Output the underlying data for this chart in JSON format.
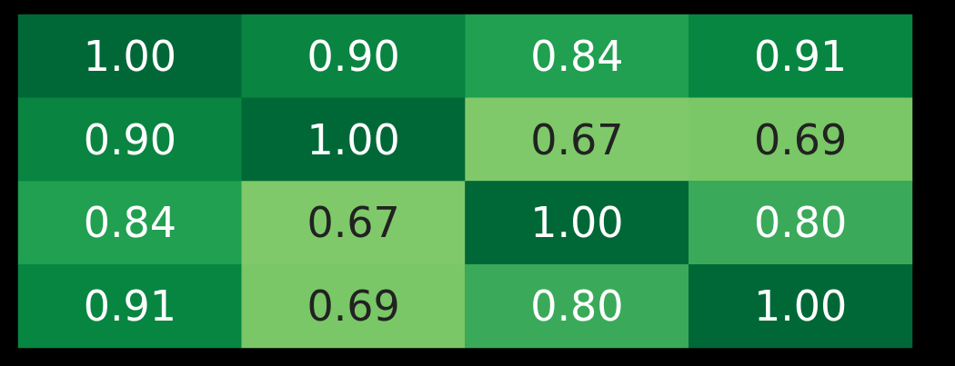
{
  "chart_data": {
    "type": "heatmap",
    "categories": [
      null,
      null,
      null,
      null
    ],
    "y_categories": [
      null,
      null,
      null,
      null
    ],
    "cells": [
      [
        1.0,
        0.9,
        0.84,
        0.91
      ],
      [
        0.9,
        1.0,
        0.67,
        0.69
      ],
      [
        0.84,
        0.67,
        1.0,
        0.8
      ],
      [
        0.91,
        0.69,
        0.8,
        1.0
      ]
    ],
    "colors": [
      "#006837",
      "#0a8441",
      "#20a050",
      "#078641",
      "#0a8441",
      "#006837",
      "#7fc96a",
      "#7ac767",
      "#20a050",
      "#7fc96a",
      "#006837",
      "#3aaa5a",
      "#078641",
      "#7ac767",
      "#3aaa5a",
      "#006837"
    ],
    "data_labels": true,
    "cell_labels": [
      [
        "1.00",
        "0.90",
        "0.84",
        "0.91"
      ],
      [
        "0.90",
        "1.00",
        "0.67",
        "0.69"
      ],
      [
        "0.84",
        "0.67",
        "1.00",
        "0.80"
      ],
      [
        "0.91",
        "0.69",
        "0.80",
        "1.00"
      ]
    ]
  }
}
